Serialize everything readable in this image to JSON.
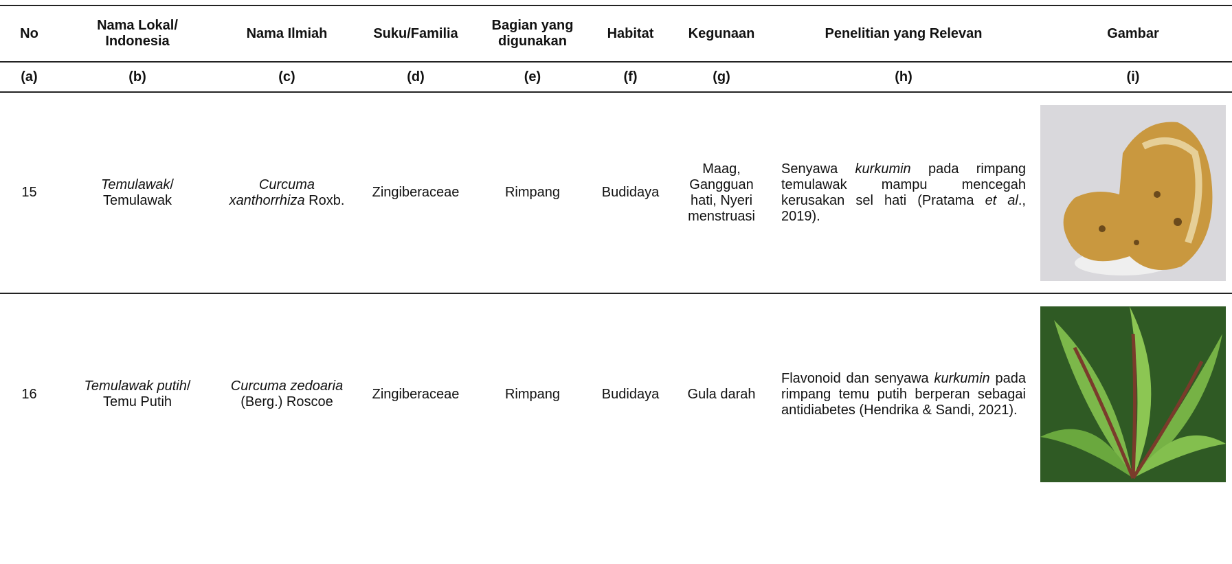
{
  "table": {
    "headers": [
      "No",
      "Nama Lokal/ Indonesia",
      "Nama Ilmiah",
      "Suku/Familia",
      "Bagian yang digunakan",
      "Habitat",
      "Kegunaan",
      "Penelitian yang Relevan",
      "Gambar"
    ],
    "column_labels": [
      "(a)",
      "(b)",
      "(c)",
      "(d)",
      "(e)",
      "(f)",
      "(g)",
      "(h)",
      "(i)"
    ],
    "rows": [
      {
        "cells": [
          [
            "15"
          ],
          [
            {
              "italic": "Temulawak"
            },
            "/ Temulawak"
          ],
          [
            {
              "italic": "Curcuma xanthorrhiza"
            },
            " Roxb."
          ],
          [
            "Zingiberaceae"
          ],
          [
            "Rimpang"
          ],
          [
            "Budidaya"
          ],
          [
            "Maag, Gangguan hati, Nyeri menstruasi"
          ],
          [
            "Senyawa ",
            {
              "italic": "kurkumin"
            },
            " pada rimpang temulawak mampu mencegah kerusakan sel hati (Pratama ",
            {
              "italic": "et al"
            },
            "., 2019)."
          ]
        ]
      },
      {
        "cells": [
          [
            "16"
          ],
          [
            {
              "italic": "Temulawak putih"
            },
            "/ Temu Putih"
          ],
          [
            {
              "italic": "Curcuma zedoaria"
            },
            " (Berg.) Roscoe"
          ],
          [
            "Zingiberaceae"
          ],
          [
            "Rimpang"
          ],
          [
            "Budidaya"
          ],
          [
            "Gula darah"
          ],
          [
            "Flavonoid dan senyawa ",
            {
              "italic": "kurkumin"
            },
            " pada rimpang temu putih berperan sebagai antidiabetes (Hendrika & Sandi, 2021)."
          ]
        ]
      }
    ]
  }
}
